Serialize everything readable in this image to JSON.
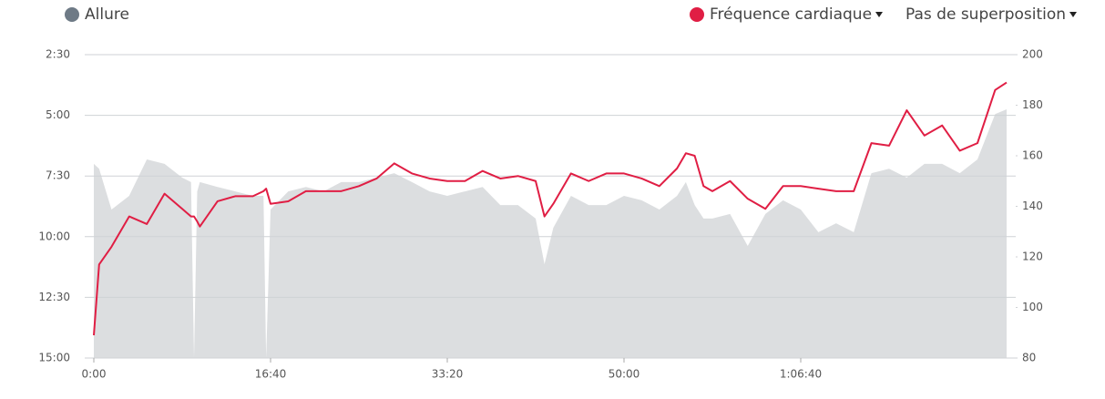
{
  "chart_data": {
    "type": "area-line",
    "x": [
      0,
      30,
      100,
      200,
      300,
      400,
      500,
      550,
      567,
      585,
      600,
      700,
      800,
      900,
      960,
      975,
      1000,
      1100,
      1200,
      1300,
      1400,
      1500,
      1600,
      1700,
      1800,
      1900,
      2000,
      2100,
      2200,
      2300,
      2400,
      2500,
      2550,
      2600,
      2700,
      2800,
      2900,
      3000,
      3100,
      3200,
      3300,
      3350,
      3400,
      3450,
      3500,
      3600,
      3700,
      3800,
      3900,
      4000,
      4100,
      4200,
      4300,
      4400,
      4500,
      4600,
      4700,
      4800,
      4900,
      5000,
      5100,
      5165
    ],
    "xlim": [
      0,
      5165
    ],
    "xticks": [
      {
        "value": 0,
        "label": "0:00"
      },
      {
        "value": 1000,
        "label": "16:40"
      },
      {
        "value": 2000,
        "label": "33:20"
      },
      {
        "value": 3000,
        "label": "50:00"
      },
      {
        "value": 4000,
        "label": "1:06:40"
      }
    ],
    "ylim": [
      900,
      150
    ],
    "yticks": [
      {
        "value": 150,
        "label": "2:30"
      },
      {
        "value": 300,
        "label": "5:00"
      },
      {
        "value": 450,
        "label": "7:30"
      },
      {
        "value": 600,
        "label": "10:00"
      },
      {
        "value": 750,
        "label": "12:30"
      },
      {
        "value": 900,
        "label": "15:00"
      }
    ],
    "y2lim": [
      80,
      200
    ],
    "y2ticks": [
      80,
      100,
      120,
      140,
      160,
      180,
      200
    ],
    "grid": true,
    "series": [
      {
        "name": "Allure",
        "color": "#dcdee0",
        "legend_color": "#6e7a86",
        "values": [
          420,
          432,
          533,
          499,
          409,
          420,
          454,
          465,
          900,
          488,
          465,
          477,
          488,
          499,
          499,
          900,
          533,
          488,
          477,
          488,
          465,
          465,
          454,
          443,
          465,
          488,
          499,
          488,
          477,
          522,
          522,
          555,
          668,
          578,
          499,
          522,
          522,
          499,
          510,
          533,
          499,
          465,
          522,
          555,
          555,
          544,
          623,
          544,
          510,
          533,
          589,
          567,
          589,
          443,
          432,
          454,
          420,
          420,
          443,
          409,
          297,
          285
        ]
      },
      {
        "name": "Fréquence cardiaque",
        "color": "#e01e44",
        "axis": "y2",
        "values": [
          89,
          117,
          124,
          136,
          133,
          145,
          139,
          136,
          136,
          134,
          132,
          142,
          144,
          144,
          146,
          147,
          141,
          142,
          146,
          146,
          146,
          148,
          151,
          157,
          153,
          151,
          150,
          150,
          154,
          151,
          152,
          150,
          136,
          141,
          153,
          150,
          153,
          153,
          151,
          148,
          155,
          161,
          160,
          148,
          146,
          150,
          143,
          139,
          148,
          148,
          147,
          146,
          146,
          165,
          164,
          178,
          168,
          172,
          162,
          165,
          186,
          189
        ]
      }
    ],
    "overlay_menu": "Pas de superposition"
  }
}
